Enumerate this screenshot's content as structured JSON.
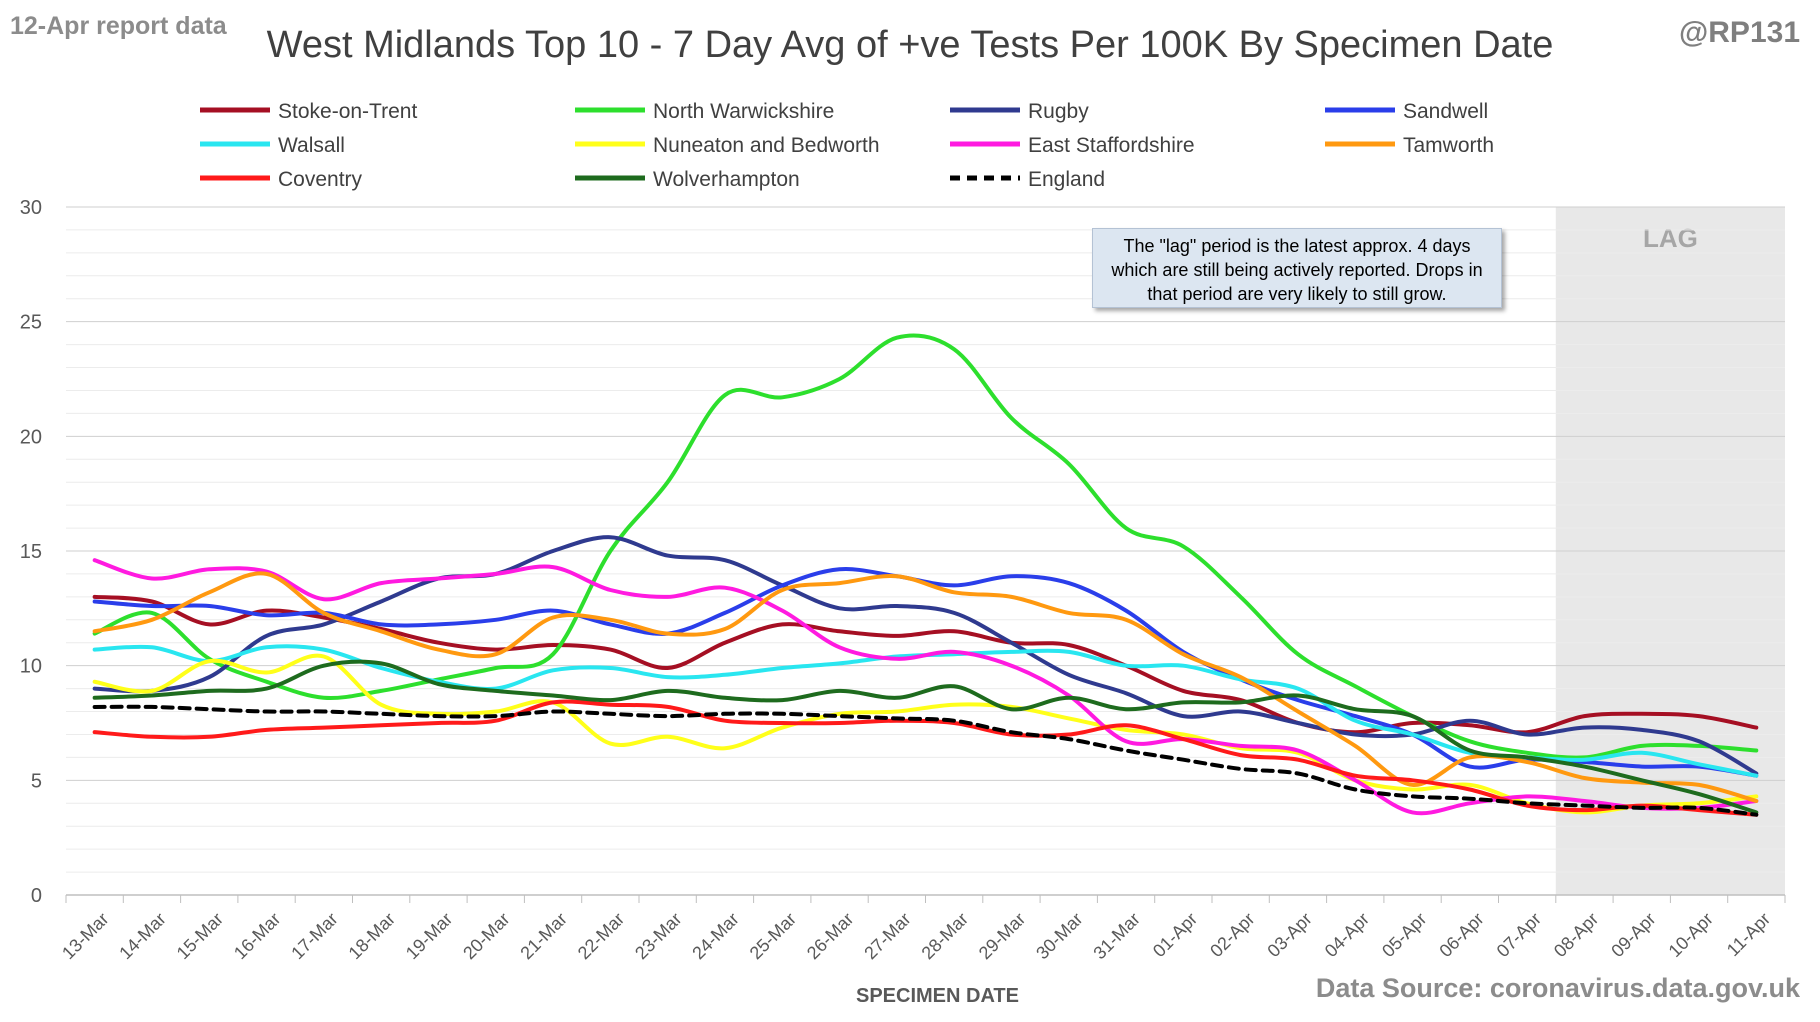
{
  "report_date": "12-Apr report data",
  "handle": "@RP131",
  "source": "Data Source: coronavirus.data.gov.uk",
  "lag_label": "LAG",
  "annotation": "The \"lag\" period is the latest approx. 4 days which are still being actively reported.  Drops in that period are very likely to still grow.",
  "colors": {
    "axis_label": "#595959",
    "gridline": "#d9d9d9",
    "lag_shade": "#e8e8e8",
    "lag_text": "#a6a6a6"
  },
  "chart_data": {
    "type": "line",
    "title": "West Midlands Top 10 - 7 Day Avg of +ve Tests Per 100K By Specimen Date",
    "xlabel": "SPECIMEN DATE",
    "ylabel": "",
    "ylim": [
      0,
      30
    ],
    "yticks": [
      0,
      5,
      10,
      15,
      20,
      25,
      30
    ],
    "grid": true,
    "legend_position": "top",
    "lag_period": [
      "08-Apr",
      "11-Apr"
    ],
    "categories": [
      "13-Mar",
      "14-Mar",
      "15-Mar",
      "16-Mar",
      "17-Mar",
      "18-Mar",
      "19-Mar",
      "20-Mar",
      "21-Mar",
      "22-Mar",
      "23-Mar",
      "24-Mar",
      "25-Mar",
      "26-Mar",
      "27-Mar",
      "28-Mar",
      "29-Mar",
      "30-Mar",
      "31-Mar",
      "01-Apr",
      "02-Apr",
      "03-Apr",
      "04-Apr",
      "05-Apr",
      "06-Apr",
      "07-Apr",
      "08-Apr",
      "09-Apr",
      "10-Apr",
      "11-Apr"
    ],
    "series": [
      {
        "name": "Stoke-on-Trent",
        "color": "#a50f23",
        "dashed": false,
        "values": [
          13.0,
          12.8,
          11.8,
          12.4,
          12.1,
          11.6,
          11.0,
          10.7,
          10.9,
          10.7,
          9.9,
          11.0,
          11.8,
          11.5,
          11.3,
          11.5,
          11.0,
          10.9,
          10.0,
          8.9,
          8.5,
          7.5,
          7.1,
          7.5,
          7.4,
          7.1,
          7.8,
          7.9,
          7.8,
          7.3
        ]
      },
      {
        "name": "North Warwickshire",
        "color": "#2ddf2d",
        "dashed": false,
        "values": [
          11.4,
          12.3,
          10.3,
          9.3,
          8.6,
          8.9,
          9.4,
          9.9,
          10.5,
          15.0,
          18.0,
          21.8,
          21.7,
          22.5,
          24.3,
          23.8,
          20.8,
          18.8,
          16.0,
          15.2,
          13.0,
          10.5,
          9.1,
          7.8,
          6.7,
          6.2,
          6.0,
          6.5,
          6.5,
          6.3
        ]
      },
      {
        "name": "Rugby",
        "color": "#2f3a8f",
        "dashed": false,
        "values": [
          9.0,
          8.9,
          9.5,
          11.3,
          11.8,
          12.8,
          13.8,
          14.0,
          15.0,
          15.6,
          14.8,
          14.6,
          13.5,
          12.5,
          12.6,
          12.3,
          11.0,
          9.6,
          8.8,
          7.8,
          8.0,
          7.5,
          7.0,
          7.0,
          7.6,
          7.0,
          7.3,
          7.2,
          6.7,
          5.3
        ]
      },
      {
        "name": "Sandwell",
        "color": "#2a3eea",
        "dashed": false,
        "values": [
          12.8,
          12.6,
          12.6,
          12.2,
          12.3,
          11.8,
          11.8,
          12.0,
          12.4,
          11.8,
          11.4,
          12.3,
          13.5,
          14.2,
          13.9,
          13.5,
          13.9,
          13.6,
          12.4,
          10.6,
          9.4,
          8.5,
          7.8,
          7.0,
          5.6,
          5.9,
          5.8,
          5.6,
          5.6,
          5.2
        ]
      },
      {
        "name": "Walsall",
        "color": "#29e6f0",
        "dashed": false,
        "values": [
          10.7,
          10.8,
          10.2,
          10.8,
          10.7,
          9.9,
          9.3,
          9.0,
          9.8,
          9.9,
          9.5,
          9.6,
          9.9,
          10.1,
          10.4,
          10.5,
          10.6,
          10.6,
          10.0,
          10.0,
          9.4,
          9.0,
          7.6,
          7.0,
          6.2,
          6.0,
          5.9,
          6.2,
          5.7,
          5.2
        ]
      },
      {
        "name": "Nuneaton and Bedworth",
        "color": "#ffff1a",
        "dashed": false,
        "values": [
          9.3,
          8.9,
          10.2,
          9.7,
          10.4,
          8.3,
          7.9,
          8.0,
          8.4,
          6.6,
          6.9,
          6.4,
          7.3,
          7.9,
          8.0,
          8.3,
          8.2,
          7.7,
          7.2,
          7.0,
          6.4,
          6.2,
          5.0,
          4.6,
          4.8,
          4.0,
          3.6,
          3.9,
          4.0,
          4.3
        ]
      },
      {
        "name": "East Staffordshire",
        "color": "#ff1ae0",
        "dashed": false,
        "values": [
          14.6,
          13.8,
          14.2,
          14.1,
          12.9,
          13.6,
          13.8,
          14.0,
          14.3,
          13.3,
          13.0,
          13.4,
          12.4,
          10.8,
          10.3,
          10.6,
          10.0,
          8.7,
          6.7,
          6.8,
          6.5,
          6.3,
          5.0,
          3.6,
          4.0,
          4.3,
          4.1,
          3.8,
          3.8,
          4.1
        ]
      },
      {
        "name": "Tamworth",
        "color": "#ff9910",
        "dashed": false,
        "values": [
          11.5,
          12.0,
          13.2,
          14.0,
          12.3,
          11.5,
          10.7,
          10.5,
          12.1,
          12.0,
          11.4,
          11.6,
          13.3,
          13.6,
          13.9,
          13.2,
          13.0,
          12.3,
          12.0,
          10.5,
          9.5,
          8.0,
          6.5,
          4.8,
          6.0,
          5.8,
          5.1,
          4.9,
          4.8,
          4.1
        ]
      },
      {
        "name": "Coventry",
        "color": "#ff1a1a",
        "dashed": false,
        "values": [
          7.1,
          6.9,
          6.9,
          7.2,
          7.3,
          7.4,
          7.5,
          7.6,
          8.4,
          8.3,
          8.2,
          7.6,
          7.5,
          7.5,
          7.6,
          7.5,
          7.0,
          7.0,
          7.4,
          6.8,
          6.1,
          5.9,
          5.2,
          5.0,
          4.6,
          3.9,
          3.7,
          3.9,
          3.7,
          3.5
        ]
      },
      {
        "name": "Wolverhampton",
        "color": "#1e6b1e",
        "dashed": false,
        "values": [
          8.6,
          8.7,
          8.9,
          9.0,
          10.0,
          10.1,
          9.2,
          8.9,
          8.7,
          8.5,
          8.9,
          8.6,
          8.5,
          8.9,
          8.6,
          9.1,
          8.1,
          8.6,
          8.1,
          8.4,
          8.4,
          8.7,
          8.1,
          7.8,
          6.3,
          6.0,
          5.6,
          5.0,
          4.4,
          3.6
        ]
      },
      {
        "name": "England",
        "color": "#000000",
        "dashed": true,
        "values": [
          8.2,
          8.2,
          8.1,
          8.0,
          8.0,
          7.9,
          7.8,
          7.8,
          8.0,
          7.9,
          7.8,
          7.9,
          7.9,
          7.8,
          7.7,
          7.6,
          7.1,
          6.8,
          6.3,
          5.9,
          5.5,
          5.3,
          4.6,
          4.3,
          4.2,
          4.0,
          3.9,
          3.8,
          3.8,
          3.5
        ]
      }
    ]
  }
}
